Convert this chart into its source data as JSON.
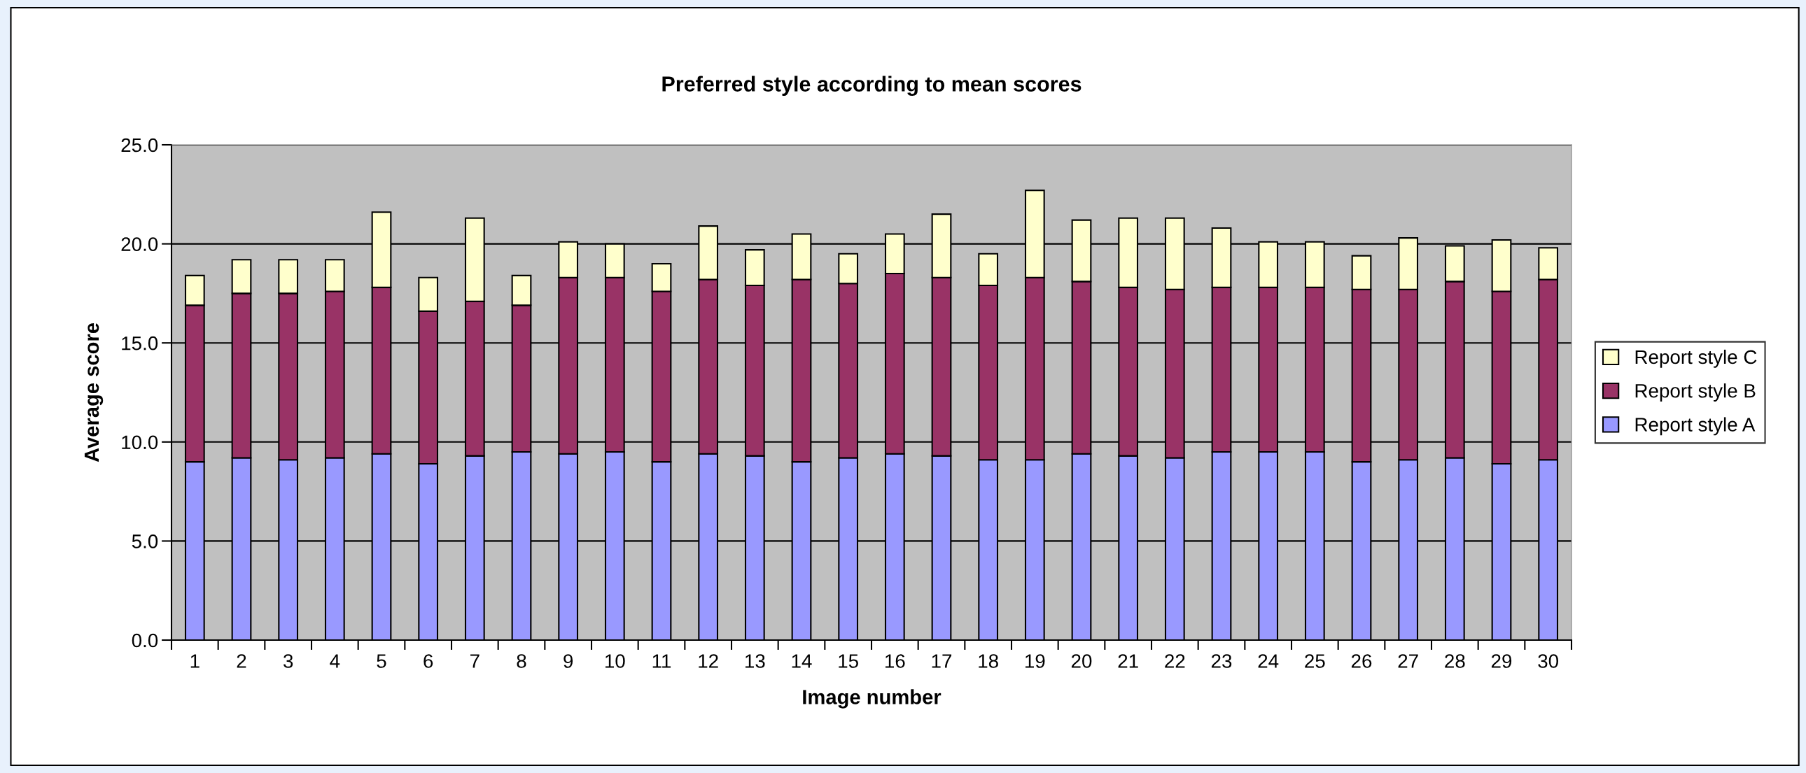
{
  "chart_data": {
    "type": "bar",
    "stacked": true,
    "title": "Preferred style according to mean scores",
    "xlabel": "Image number",
    "ylabel": "Average score",
    "categories": [
      "1",
      "2",
      "3",
      "4",
      "5",
      "6",
      "7",
      "8",
      "9",
      "10",
      "11",
      "12",
      "13",
      "14",
      "15",
      "16",
      "17",
      "18",
      "19",
      "20",
      "21",
      "22",
      "23",
      "24",
      "25",
      "26",
      "27",
      "28",
      "29",
      "30"
    ],
    "series": [
      {
        "name": "Report style A",
        "color": "#9999ff",
        "values": [
          9.0,
          9.2,
          9.1,
          9.2,
          9.4,
          8.9,
          9.3,
          9.5,
          9.4,
          9.5,
          9.0,
          9.4,
          9.3,
          9.0,
          9.2,
          9.4,
          9.3,
          9.1,
          9.1,
          9.4,
          9.3,
          9.2,
          9.5,
          9.5,
          9.5,
          9.0,
          9.1,
          9.2,
          8.9,
          9.1
        ]
      },
      {
        "name": "Report style B",
        "color": "#993366",
        "values": [
          7.9,
          8.3,
          8.4,
          8.4,
          8.4,
          7.7,
          7.8,
          7.4,
          8.9,
          8.8,
          8.6,
          8.8,
          8.6,
          9.2,
          8.8,
          9.1,
          9.0,
          8.8,
          9.2,
          8.7,
          8.5,
          8.5,
          8.3,
          8.3,
          8.3,
          8.7,
          8.6,
          8.9,
          8.7,
          9.1
        ]
      },
      {
        "name": "Report style C",
        "color": "#ffffcc",
        "values": [
          1.5,
          1.7,
          1.7,
          1.6,
          3.8,
          1.7,
          4.2,
          1.5,
          1.8,
          1.7,
          1.4,
          2.7,
          1.8,
          2.3,
          1.5,
          2.0,
          3.2,
          1.6,
          4.4,
          3.1,
          3.5,
          3.6,
          3.0,
          2.3,
          2.3,
          1.7,
          2.6,
          1.8,
          2.6,
          1.6
        ]
      }
    ],
    "ylim": [
      0,
      25
    ],
    "yticks": [
      {
        "value": 0,
        "label": "0.0"
      },
      {
        "value": 5,
        "label": "5.0"
      },
      {
        "value": 10,
        "label": "10.0"
      },
      {
        "value": 15,
        "label": "15.0"
      },
      {
        "value": 20,
        "label": "20.0"
      },
      {
        "value": 25,
        "label": "25.0"
      }
    ],
    "grid": "y",
    "legend": "right"
  }
}
